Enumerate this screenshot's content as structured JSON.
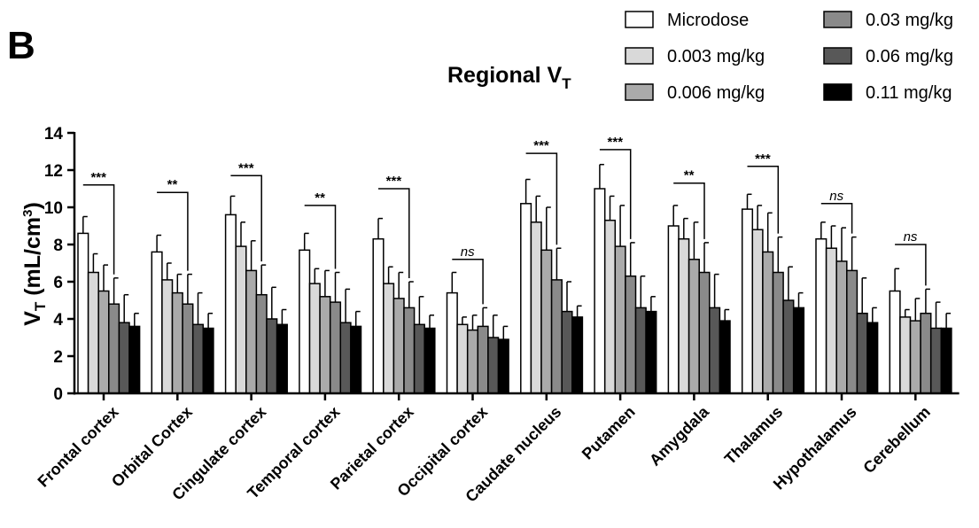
{
  "panel_label": "B",
  "chart_data": {
    "type": "bar",
    "title": "Regional V",
    "title_subscript": "T",
    "ylabel": "V",
    "ylabel_subscript": "T",
    "ylabel_unit": "(mL/cm",
    "ylabel_unit_sup": "3",
    "ylabel_unit_close": ")",
    "ylim": [
      0,
      14
    ],
    "yticks": [
      "0",
      "2",
      "4",
      "6",
      "8",
      "10",
      "12",
      "14"
    ],
    "grid": false,
    "legend_position": "top-right",
    "categories": [
      "Frontal cortex",
      "Orbital Cortex",
      "Cingulate cortex",
      "Temporal cortex",
      "Parietal cortex",
      "Occipital cortex",
      "Caudate nucleus",
      "Putamen",
      "Amygdala",
      "Thalamus",
      "Hypothalamus",
      "Cerebellum"
    ],
    "series": [
      {
        "name": "Microdose",
        "color": "#ffffff",
        "values": [
          8.6,
          7.6,
          9.6,
          7.7,
          8.3,
          5.4,
          10.2,
          11.0,
          9.0,
          9.9,
          8.3,
          5.5
        ],
        "errors": [
          0.9,
          0.9,
          1.0,
          0.9,
          1.1,
          1.1,
          1.3,
          1.3,
          1.1,
          0.8,
          0.9,
          1.2
        ]
      },
      {
        "name": "0.003 mg/kg",
        "color": "#d9d9d9",
        "values": [
          6.5,
          6.1,
          7.9,
          5.9,
          5.9,
          3.7,
          9.2,
          9.3,
          8.3,
          8.8,
          7.8,
          4.1
        ],
        "errors": [
          1.0,
          0.9,
          1.3,
          0.8,
          0.9,
          0.4,
          1.4,
          1.3,
          1.1,
          1.3,
          1.2,
          0.4
        ]
      },
      {
        "name": "0.006 mg/kg",
        "color": "#aaaaaa",
        "values": [
          5.5,
          5.4,
          6.6,
          5.2,
          5.1,
          3.4,
          7.7,
          7.9,
          7.2,
          7.6,
          7.1,
          3.9
        ],
        "errors": [
          1.4,
          1.0,
          1.6,
          1.4,
          1.4,
          0.8,
          2.3,
          2.2,
          2.0,
          2.1,
          1.8,
          1.2
        ]
      },
      {
        "name": "0.03 mg/kg",
        "color": "#8a8a8a",
        "values": [
          4.8,
          4.8,
          5.3,
          4.9,
          4.6,
          3.6,
          6.1,
          6.3,
          6.5,
          6.5,
          6.6,
          4.3
        ],
        "errors": [
          1.4,
          1.6,
          1.6,
          1.6,
          1.4,
          1.0,
          1.7,
          1.8,
          1.6,
          1.9,
          1.8,
          1.3
        ]
      },
      {
        "name": "0.06 mg/kg",
        "color": "#585858",
        "values": [
          3.8,
          3.7,
          4.0,
          3.8,
          3.7,
          3.0,
          4.4,
          4.6,
          4.6,
          5.0,
          4.3,
          3.5
        ],
        "errors": [
          1.5,
          1.7,
          1.7,
          1.8,
          1.5,
          1.2,
          1.6,
          1.7,
          1.8,
          1.8,
          1.9,
          1.4
        ]
      },
      {
        "name": "0.11 mg/kg",
        "color": "#000000",
        "values": [
          3.6,
          3.5,
          3.7,
          3.6,
          3.5,
          2.9,
          4.1,
          4.4,
          3.9,
          4.6,
          3.8,
          3.5
        ],
        "errors": [
          0.7,
          0.8,
          0.8,
          0.8,
          0.7,
          0.7,
          0.6,
          0.8,
          0.6,
          0.8,
          0.8,
          0.8
        ]
      }
    ],
    "significance": [
      {
        "label": "***",
        "top": 11.2
      },
      {
        "label": "**",
        "top": 10.8
      },
      {
        "label": "***",
        "top": 11.7
      },
      {
        "label": "**",
        "top": 10.1
      },
      {
        "label": "***",
        "top": 11.0
      },
      {
        "label": "ns",
        "top": 7.2
      },
      {
        "label": "***",
        "top": 12.9
      },
      {
        "label": "***",
        "top": 13.1
      },
      {
        "label": "**",
        "top": 11.3
      },
      {
        "label": "***",
        "top": 12.2
      },
      {
        "label": "ns",
        "top": 10.2
      },
      {
        "label": "ns",
        "top": 8.0
      }
    ]
  }
}
